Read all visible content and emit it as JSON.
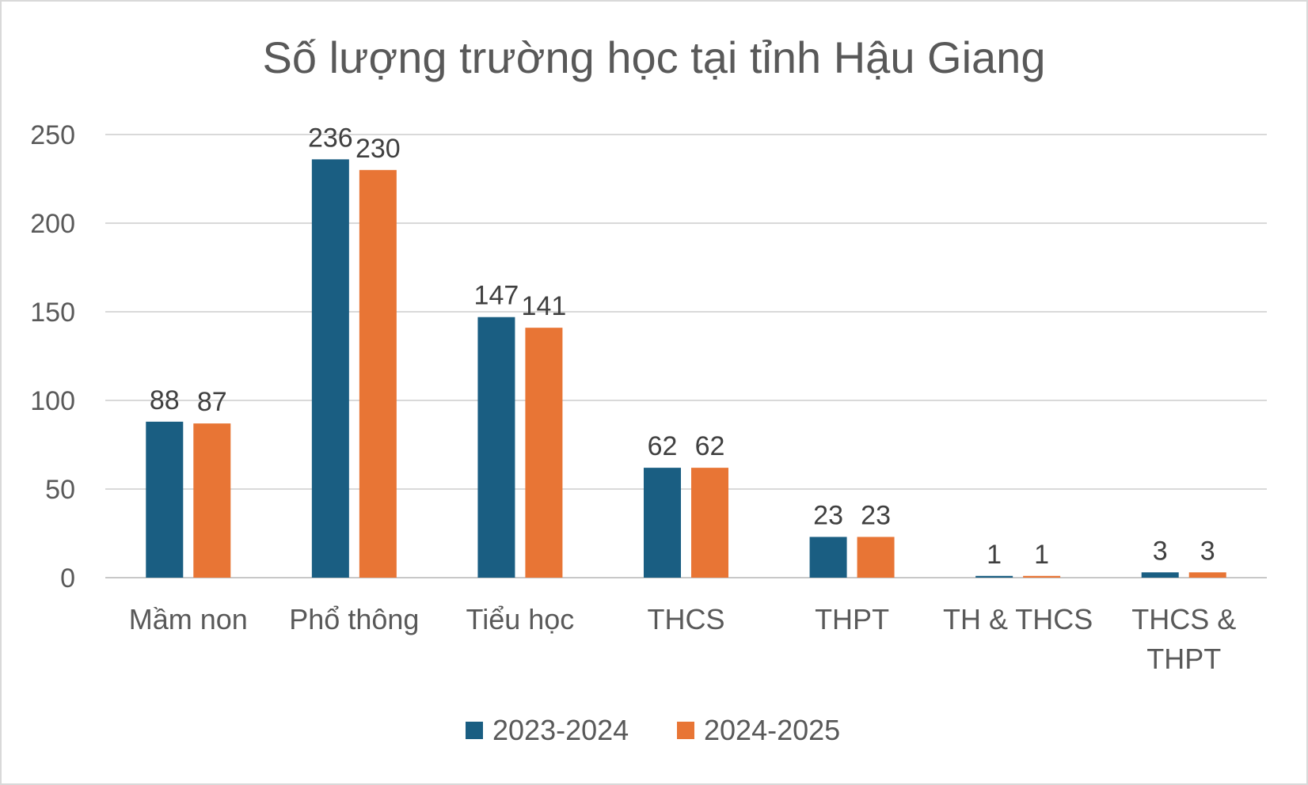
{
  "chart_data": {
    "type": "bar",
    "title": "Số lượng trường học tại tỉnh Hậu Giang",
    "categories": [
      [
        "Mầm non"
      ],
      [
        "Phổ thông"
      ],
      [
        "Tiểu học"
      ],
      [
        "THCS"
      ],
      [
        "THPT"
      ],
      [
        "TH & THCS"
      ],
      [
        "THCS &",
        "THPT"
      ]
    ],
    "series": [
      {
        "name": "2023-2024",
        "color": "#1a5e82",
        "values": [
          88,
          236,
          147,
          62,
          23,
          1,
          3
        ]
      },
      {
        "name": "2024-2025",
        "color": "#e87535",
        "values": [
          87,
          230,
          141,
          62,
          23,
          1,
          3
        ]
      }
    ],
    "ylim": [
      0,
      250
    ],
    "yticks": [
      "0",
      "50",
      "100",
      "150",
      "200",
      "250"
    ],
    "grid": true,
    "legend": "bottom"
  }
}
